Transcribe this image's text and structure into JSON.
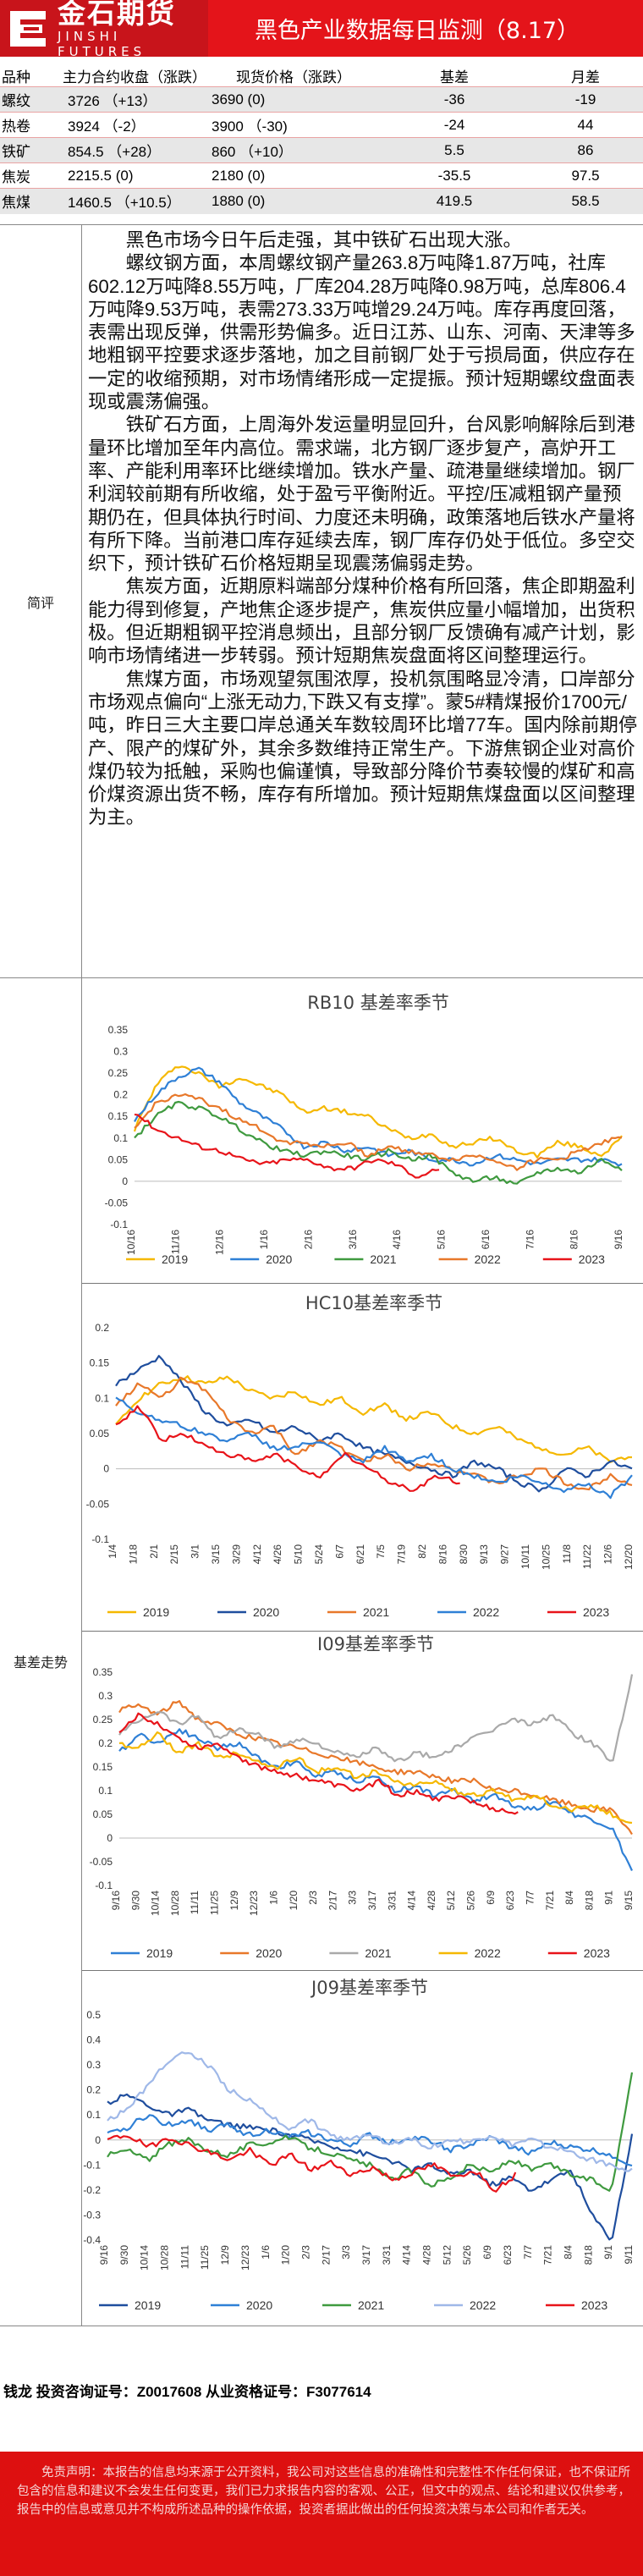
{
  "header": {
    "logo_cn": "金石期货",
    "logo_en": "JINSHI FUTURES",
    "title": "黑色产业数据每日监测（8.17）"
  },
  "table": {
    "columns": [
      "品种",
      "主力合约收盘（涨跌）",
      "现货价格（涨跌）",
      "基差",
      "月差"
    ],
    "rows": [
      {
        "name": "螺纹",
        "close": "3726 （+13）",
        "spot": "3690 (0)",
        "basis": "-36",
        "spread": "-19"
      },
      {
        "name": "热卷",
        "close": "3924 （-2）",
        "spot": "3900 （-30)",
        "basis": "-24",
        "spread": "44"
      },
      {
        "name": "铁矿",
        "close": "854.5 （+28）",
        "spot": "860 （+10）",
        "basis": "5.5",
        "spread": "86"
      },
      {
        "name": "焦炭",
        "close": "2215.5 (0)",
        "spot": "2180 (0)",
        "basis": "-35.5",
        "spread": "97.5"
      },
      {
        "name": "焦煤",
        "close": "1460.5 （+10.5）",
        "spot": "1880 (0)",
        "basis": "419.5",
        "spread": "58.5"
      }
    ]
  },
  "sections": {
    "commentary_label": "简评",
    "basis_label": "基差走势"
  },
  "commentary": [
    "黑色市场今日午后走强，其中铁矿石出现大涨。",
    "螺纹钢方面，本周螺纹钢产量263.8万吨降1.87万吨，社库602.12万吨降8.55万吨，厂库204.28万吨降0.98万吨，总库806.4万吨降9.53万吨，表需273.33万吨增29.24万吨。库存再度回落，表需出现反弹，供需形势偏多。近日江苏、山东、河南、天津等多地粗钢平控要求逐步落地，加之目前钢厂处于亏损局面，供应存在一定的收缩预期，对市场情绪形成一定提振。预计短期螺纹盘面表现或震荡偏强。",
    "铁矿石方面，上周海外发运量明显回升，台风影响解除后到港量环比增加至年内高位。需求端，北方钢厂逐步复产，高炉开工率、产能利用率环比继续增加。铁水产量、疏港量继续增加。钢厂利润较前期有所收缩，处于盈亏平衡附近。平控/压减粗钢产量预期仍在，但具体执行时间、力度还未明确，政策落地后铁水产量将有所下降。当前港口库存延续去库，钢厂库存仍处于低位。多空交织下，预计铁矿石价格短期呈现震荡偏弱走势。",
    "焦炭方面，近期原料端部分煤种价格有所回落，焦企即期盈利能力得到修复，产地焦企逐步提产，焦炭供应量小幅增加，出货积极。但近期粗钢平控消息频出，且部分钢厂反馈确有减产计划，影响市场情绪进一步转弱。预计短期焦炭盘面将区间整理运行。",
    "焦煤方面，市场观望氛围浓厚，投机氛围略显冷清，口岸部分市场观点偏向“上涨无动力,下跌又有支撑”。蒙5#精煤报价1700元/吨，昨日三大主要口岸总通关车数较周环比增77车。国内除前期停产、限产的煤矿外，其余多数维持正常生产。下游焦钢企业对高价煤仍较为抵触，采购也偏谨慎，导致部分降价节奏较慢的煤矿和高价煤资源出货不畅，库存有所增加。预计短期焦煤盘面以区间整理为主。"
  ],
  "charts": [
    {
      "chart_data": {
        "type": "line",
        "title": "RB10 基差率季节",
        "xlabel": "",
        "ylabel": "",
        "ylim": [
          -0.05,
          0.35
        ],
        "y_ticks": [
          "0.35",
          "0.3",
          "0.25",
          "0.2",
          "0.15",
          "0.1",
          "0.05",
          "0",
          "-0.05",
          "-0.1"
        ],
        "x_ticks": [
          "10/16",
          "11/16",
          "12/16",
          "1/16",
          "2/16",
          "3/16",
          "4/16",
          "5/16",
          "6/16",
          "7/16",
          "8/16",
          "9/16"
        ],
        "series": [
          {
            "name": "2019",
            "color": "#f5b800",
            "values": [
              0.12,
              0.22,
              0.27,
              0.25,
              0.22,
              0.24,
              0.22,
              0.2,
              0.16,
              0.17,
              0.16,
              0.15,
              0.12,
              0.1,
              0.11,
              0.08,
              0.09,
              0.1,
              0.07,
              0.06,
              0.09,
              0.08,
              0.06,
              0.1
            ]
          },
          {
            "name": "2020",
            "color": "#2f80d6",
            "values": [
              0.14,
              0.2,
              0.24,
              0.26,
              0.23,
              0.18,
              0.15,
              0.12,
              0.08,
              0.09,
              0.07,
              0.08,
              0.06,
              0.07,
              0.05,
              0.05,
              0.04,
              0.06,
              0.05,
              0.04,
              0.05,
              0.05,
              0.05,
              0.04
            ]
          },
          {
            "name": "2021",
            "color": "#3f9a3f",
            "values": [
              0.1,
              0.15,
              0.18,
              0.17,
              0.15,
              0.12,
              0.09,
              0.07,
              0.06,
              0.07,
              0.06,
              0.05,
              0.07,
              0.05,
              0.06,
              0.02,
              0.0,
              0.01,
              -0.01,
              0.02,
              0.03,
              0.02,
              0.05,
              0.03
            ]
          },
          {
            "name": "2022",
            "color": "#e8782a",
            "values": [
              0.12,
              0.18,
              0.2,
              0.19,
              0.17,
              0.14,
              0.12,
              0.09,
              0.09,
              0.08,
              0.09,
              0.06,
              0.08,
              0.07,
              0.06,
              0.05,
              0.06,
              0.05,
              0.03,
              0.05,
              0.05,
              0.07,
              0.09,
              0.1
            ]
          },
          {
            "name": "2023",
            "color": "#e8141a",
            "values": [
              0.16,
              0.12,
              0.1,
              0.08,
              0.07,
              0.05,
              0.04,
              0.05,
              0.05,
              0.03,
              0.03,
              0.05,
              0.04,
              0.01,
              0.03
            ]
          }
        ]
      }
    },
    {
      "chart_data": {
        "type": "line",
        "title": "HC10基差率季节",
        "xlabel": "",
        "ylabel": "",
        "ylim": [
          -0.1,
          0.2
        ],
        "y_ticks": [
          "0.2",
          "0.15",
          "0.1",
          "0.05",
          "0",
          "-0.05",
          "-0.1"
        ],
        "x_ticks": [
          "1/4",
          "1/18",
          "2/1",
          "2/15",
          "3/1",
          "3/15",
          "3/29",
          "4/12",
          "4/26",
          "5/10",
          "5/24",
          "6/7",
          "6/21",
          "7/5",
          "7/19",
          "8/2",
          "8/16",
          "8/30",
          "9/13",
          "9/27",
          "10/11",
          "10/25",
          "11/8",
          "11/22",
          "12/6",
          "12/20"
        ],
        "series": [
          {
            "name": "2019",
            "color": "#f5b800",
            "values": [
              0.06,
              0.1,
              0.12,
              0.13,
              0.12,
              0.13,
              0.11,
              0.1,
              0.11,
              0.09,
              0.1,
              0.08,
              0.09,
              0.07,
              0.08,
              0.06,
              0.05,
              0.06,
              0.04,
              0.03,
              0.02,
              0.03,
              0.01,
              0.02
            ]
          },
          {
            "name": "2020",
            "color": "#1f4e9e",
            "values": [
              0.12,
              0.14,
              0.16,
              0.12,
              0.08,
              0.06,
              0.07,
              0.05,
              0.06,
              0.04,
              0.05,
              0.03,
              0.02,
              0.01,
              0.0,
              -0.01,
              0.01,
              0.0,
              -0.02,
              -0.03,
              0.0,
              -0.01,
              0.01,
              0.0
            ]
          },
          {
            "name": "2021",
            "color": "#e8782a",
            "values": [
              0.09,
              0.12,
              0.1,
              0.13,
              0.11,
              0.07,
              0.05,
              0.06,
              0.02,
              0.04,
              0.03,
              0.01,
              0.02,
              0.0,
              0.01,
              0.0,
              -0.01,
              -0.02,
              -0.01,
              0.0,
              -0.02,
              -0.03,
              -0.01,
              -0.02
            ]
          },
          {
            "name": "2022",
            "color": "#2f80d6",
            "values": [
              0.1,
              0.08,
              0.07,
              0.06,
              0.05,
              0.04,
              0.05,
              0.03,
              0.03,
              0.04,
              0.02,
              0.01,
              0.03,
              0.01,
              0.02,
              0.0,
              -0.01,
              -0.02,
              -0.01,
              -0.02,
              -0.03,
              -0.02,
              -0.04,
              -0.01
            ]
          },
          {
            "name": "2023",
            "color": "#e8141a",
            "values": [
              0.06,
              0.09,
              0.04,
              0.05,
              0.03,
              0.02,
              0.01,
              0.02,
              0.0,
              -0.01,
              0.02,
              0.0,
              -0.02,
              -0.03,
              -0.01,
              -0.02
            ]
          }
        ]
      }
    },
    {
      "chart_data": {
        "type": "line",
        "title": "I09基差率季节",
        "xlabel": "",
        "ylabel": "",
        "ylim": [
          -0.1,
          0.35
        ],
        "y_ticks": [
          "0.35",
          "0.3",
          "0.25",
          "0.2",
          "0.15",
          "0.1",
          "0.05",
          "0",
          "-0.05",
          "-0.1"
        ],
        "x_ticks": [
          "9/16",
          "9/30",
          "10/14",
          "10/28",
          "11/11",
          "11/25",
          "12/9",
          "12/23",
          "1/6",
          "1/20",
          "2/3",
          "2/17",
          "3/3",
          "3/17",
          "3/31",
          "4/14",
          "4/28",
          "5/12",
          "5/26",
          "6/9",
          "6/23",
          "7/7",
          "7/21",
          "8/4",
          "8/18",
          "9/1",
          "9/15"
        ],
        "series": [
          {
            "name": "2019",
            "color": "#2f80d6",
            "values": [
              0.18,
              0.22,
              0.2,
              0.23,
              0.21,
              0.19,
              0.2,
              0.17,
              0.15,
              0.16,
              0.13,
              0.14,
              0.12,
              0.13,
              0.1,
              0.11,
              0.09,
              0.1,
              0.08,
              0.09,
              0.07,
              0.06,
              0.08,
              0.05,
              0.04,
              0.02,
              -0.07
            ]
          },
          {
            "name": "2020",
            "color": "#e8782a",
            "values": [
              0.27,
              0.28,
              0.26,
              0.29,
              0.25,
              0.24,
              0.22,
              0.21,
              0.2,
              0.19,
              0.18,
              0.17,
              0.16,
              0.15,
              0.14,
              0.14,
              0.13,
              0.12,
              0.12,
              0.1,
              0.1,
              0.09,
              0.08,
              0.07,
              0.06,
              0.06,
              0.01
            ]
          },
          {
            "name": "2021",
            "color": "#a9a9a9",
            "values": [
              0.22,
              0.25,
              0.27,
              0.24,
              0.26,
              0.21,
              0.23,
              0.22,
              0.19,
              0.21,
              0.2,
              0.18,
              0.17,
              0.19,
              0.16,
              0.18,
              0.17,
              0.19,
              0.21,
              0.23,
              0.25,
              0.24,
              0.26,
              0.22,
              0.2,
              0.16,
              0.34
            ]
          },
          {
            "name": "2022",
            "color": "#f5b800",
            "values": [
              0.2,
              0.19,
              0.22,
              0.18,
              0.2,
              0.17,
              0.18,
              0.16,
              0.15,
              0.17,
              0.14,
              0.15,
              0.13,
              0.14,
              0.12,
              0.11,
              0.12,
              0.1,
              0.09,
              0.1,
              0.08,
              0.09,
              0.07,
              0.06,
              0.07,
              0.05,
              0.03
            ]
          },
          {
            "name": "2023",
            "color": "#e8141a",
            "values": [
              0.22,
              0.26,
              0.24,
              0.21,
              0.19,
              0.2,
              0.17,
              0.15,
              0.14,
              0.13,
              0.12,
              0.11,
              0.1,
              0.12,
              0.09,
              0.1,
              0.08,
              0.09,
              0.07,
              0.06,
              0.05
            ]
          }
        ]
      }
    },
    {
      "chart_data": {
        "type": "line",
        "title": "J09基差率季节",
        "xlabel": "",
        "ylabel": "",
        "ylim": [
          -0.4,
          0.5
        ],
        "y_ticks": [
          "0.5",
          "0.4",
          "0.3",
          "0.2",
          "0.1",
          "0",
          "-0.1",
          "-0.2",
          "-0.3",
          "-0.4"
        ],
        "x_ticks": [
          "9/16",
          "9/30",
          "10/14",
          "10/28",
          "11/11",
          "11/25",
          "12/9",
          "12/23",
          "1/6",
          "1/20",
          "2/3",
          "2/17",
          "3/3",
          "3/17",
          "3/31",
          "4/14",
          "4/28",
          "5/12",
          "5/26",
          "6/9",
          "6/23",
          "7/7",
          "7/21",
          "8/4",
          "8/18",
          "9/1",
          "9/11"
        ],
        "series": [
          {
            "name": "2019",
            "color": "#1f4e9e",
            "values": [
              0.15,
              0.18,
              0.14,
              0.1,
              0.12,
              0.08,
              0.06,
              0.05,
              0.04,
              0.02,
              0.0,
              -0.02,
              -0.04,
              -0.06,
              -0.08,
              -0.12,
              -0.1,
              -0.14,
              -0.12,
              -0.18,
              -0.15,
              -0.2,
              -0.16,
              -0.12,
              -0.3,
              -0.4,
              0.02
            ]
          },
          {
            "name": "2020",
            "color": "#2f80d6",
            "values": [
              0.02,
              0.05,
              0.1,
              0.06,
              0.08,
              0.04,
              0.06,
              0.02,
              0.04,
              0.01,
              0.03,
              0.0,
              -0.02,
              0.02,
              -0.01,
              0.01,
              0.0,
              -0.04,
              -0.02,
              0.01,
              -0.03,
              -0.05,
              -0.01,
              -0.03,
              -0.04,
              -0.06,
              -0.1
            ]
          },
          {
            "name": "2021",
            "color": "#3f9a3f",
            "values": [
              -0.06,
              -0.04,
              -0.08,
              -0.02,
              0.0,
              -0.04,
              -0.06,
              -0.02,
              -0.01,
              0.01,
              -0.03,
              -0.05,
              -0.08,
              -0.1,
              -0.16,
              -0.12,
              -0.18,
              -0.15,
              -0.1,
              -0.13,
              -0.08,
              -0.12,
              -0.1,
              -0.14,
              -0.16,
              -0.2,
              0.28
            ]
          },
          {
            "name": "2022",
            "color": "#9fb8e8",
            "values": [
              0.08,
              0.12,
              0.22,
              0.32,
              0.35,
              0.3,
              0.2,
              0.16,
              0.1,
              0.05,
              0.08,
              0.02,
              0.0,
              0.03,
              -0.02,
              0.01,
              -0.03,
              0.0,
              -0.01,
              0.02,
              -0.02,
              0.0,
              -0.03,
              -0.05,
              -0.08,
              -0.1,
              -0.12
            ]
          },
          {
            "name": "2023",
            "color": "#e8141a",
            "values": [
              0.0,
              0.02,
              -0.03,
              0.01,
              -0.02,
              -0.05,
              -0.08,
              -0.04,
              -0.1,
              -0.06,
              -0.12,
              -0.09,
              -0.14,
              -0.11,
              -0.16,
              -0.13,
              -0.1,
              -0.15,
              -0.12,
              -0.2,
              -0.14
            ]
          }
        ]
      }
    }
  ],
  "footer": {
    "analyst": "钱龙 投资咨询证号：Z0017608 从业资格证号：F3077614",
    "disclaimer": "免责声明：本报告的信息均来源于公开资料，我公司对这些信息的准确性和完整性不作任何保证，也不保证所包含的信息和建议不会发生任何变更，我们已力求报告内容的客观、公正，但文中的观点、结论和建议仅供参考，报告中的信息或意见并不构成所述品种的操作依据，投资者据此做出的任何投资决策与本公司和作者无关。"
  }
}
